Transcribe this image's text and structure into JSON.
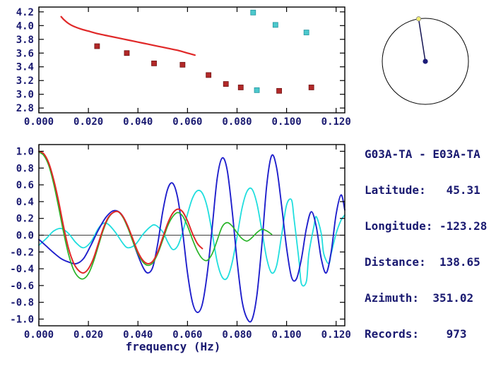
{
  "text_color": "#191970",
  "axis_color": "#000000",
  "info": {
    "title": "G03A-TA - E03A-TA",
    "lines": [
      "Latitude:   45.31",
      "Longitude: -123.28",
      "Distance:  138.65",
      "Azimuth:  351.02",
      "Records:    973"
    ]
  },
  "compass": {
    "azimuth_deg": 351.02,
    "ring_color": "#000000",
    "needle_color": "#141452",
    "end_dot_color": "#f0ec70",
    "center_dot_color": "#1c1c78"
  },
  "chart_data": [
    {
      "type": "scatter",
      "title": "",
      "xlabel": "",
      "ylabel": "",
      "xlim": [
        0,
        0.1235
      ],
      "ylim": [
        2.73,
        4.27
      ],
      "grid": false,
      "xticks": [
        0,
        0.02,
        0.04,
        0.06,
        0.08,
        0.1,
        0.12
      ],
      "xtick_labels": [
        "0.000",
        "0.020",
        "0.040",
        "0.060",
        "0.080",
        "0.100",
        "0.120"
      ],
      "yticks": [
        4.2,
        4.0,
        3.8,
        3.6,
        3.4,
        3.2,
        3.0,
        2.8
      ],
      "ytick_labels": [
        "4.2",
        "4.0",
        "3.8",
        "3.6",
        "3.4",
        "3.2",
        "3.0",
        "2.8"
      ],
      "series": [
        {
          "name": "reference-dispersion-curve",
          "type": "line",
          "color": "#e02828",
          "width": 2.2,
          "points": [
            [
              0.009,
              4.13
            ],
            [
              0.01,
              4.09
            ],
            [
              0.012,
              4.03
            ],
            [
              0.014,
              3.99
            ],
            [
              0.017,
              3.95
            ],
            [
              0.02,
              3.92
            ],
            [
              0.024,
              3.88
            ],
            [
              0.028,
              3.85
            ],
            [
              0.032,
              3.82
            ],
            [
              0.036,
              3.79
            ],
            [
              0.04,
              3.76
            ],
            [
              0.044,
              3.73
            ],
            [
              0.048,
              3.7
            ],
            [
              0.052,
              3.67
            ],
            [
              0.056,
              3.64
            ],
            [
              0.06,
              3.6
            ],
            [
              0.063,
              3.57
            ]
          ]
        },
        {
          "name": "dispersion-picks-red",
          "type": "scatter",
          "marker": "square",
          "color": "#b22828",
          "edge_color": "#701414",
          "points": [
            [
              0.0235,
              3.7
            ],
            [
              0.0355,
              3.6
            ],
            [
              0.0465,
              3.45
            ],
            [
              0.058,
              3.43
            ],
            [
              0.0685,
              3.28
            ],
            [
              0.0755,
              3.15
            ],
            [
              0.0815,
              3.1
            ],
            [
              0.097,
              3.05
            ],
            [
              0.11,
              3.1
            ]
          ]
        },
        {
          "name": "dispersion-picks-cyan",
          "type": "scatter",
          "marker": "square",
          "color": "#4cc8cc",
          "edge_color": "#2496a0",
          "points": [
            [
              0.0865,
              4.19
            ],
            [
              0.0955,
              4.01
            ],
            [
              0.108,
              3.9
            ],
            [
              0.088,
              3.06
            ]
          ]
        }
      ]
    },
    {
      "type": "line",
      "title": "",
      "xlabel": "frequency (Hz)",
      "ylabel": "",
      "xlim": [
        0,
        0.1235
      ],
      "ylim": [
        -1.08,
        1.08
      ],
      "grid": false,
      "zero_line": true,
      "xticks": [
        0,
        0.02,
        0.04,
        0.06,
        0.08,
        0.1,
        0.12
      ],
      "xtick_labels": [
        "0.000",
        "0.020",
        "0.040",
        "0.060",
        "0.080",
        "0.100",
        "0.120"
      ],
      "yticks": [
        1.0,
        0.8,
        0.6,
        0.4,
        0.2,
        0.0,
        -0.2,
        -0.4,
        -0.6,
        -0.8,
        -1.0
      ],
      "ytick_labels": [
        "1.0",
        "0.8",
        "0.6",
        "0.4",
        "0.2",
        "0.0",
        "-0.2",
        "-0.4",
        "-0.6",
        "-0.8",
        "-1.0"
      ],
      "series": [
        {
          "name": "cyan-waveform",
          "type": "line",
          "color": "#20dede",
          "width": 1.8,
          "points": [
            [
              0.0,
              -0.12
            ],
            [
              0.003,
              -0.04
            ],
            [
              0.006,
              0.05
            ],
            [
              0.009,
              0.08
            ],
            [
              0.012,
              0.02
            ],
            [
              0.015,
              -0.09
            ],
            [
              0.018,
              -0.15
            ],
            [
              0.021,
              -0.08
            ],
            [
              0.024,
              0.08
            ],
            [
              0.026,
              0.14
            ],
            [
              0.028,
              0.13
            ],
            [
              0.031,
              0.03
            ],
            [
              0.034,
              -0.1
            ],
            [
              0.036,
              -0.15
            ],
            [
              0.039,
              -0.11
            ],
            [
              0.042,
              0.01
            ],
            [
              0.045,
              0.1
            ],
            [
              0.047,
              0.12
            ],
            [
              0.05,
              0.04
            ],
            [
              0.052,
              -0.08
            ],
            [
              0.054,
              -0.17
            ],
            [
              0.056,
              -0.13
            ],
            [
              0.058,
              0.03
            ],
            [
              0.06,
              0.25
            ],
            [
              0.062,
              0.44
            ],
            [
              0.064,
              0.53
            ],
            [
              0.066,
              0.5
            ],
            [
              0.068,
              0.33
            ],
            [
              0.07,
              0.02
            ],
            [
              0.072,
              -0.32
            ],
            [
              0.074,
              -0.5
            ],
            [
              0.076,
              -0.51
            ],
            [
              0.078,
              -0.33
            ],
            [
              0.08,
              -0.02
            ],
            [
              0.082,
              0.32
            ],
            [
              0.084,
              0.52
            ],
            [
              0.086,
              0.55
            ],
            [
              0.088,
              0.38
            ],
            [
              0.09,
              0.06
            ],
            [
              0.092,
              -0.28
            ],
            [
              0.094,
              -0.45
            ],
            [
              0.096,
              -0.36
            ],
            [
              0.098,
              0.0
            ],
            [
              0.1,
              0.36
            ],
            [
              0.102,
              0.42
            ],
            [
              0.103,
              0.2
            ],
            [
              0.105,
              -0.3
            ],
            [
              0.106,
              -0.58
            ],
            [
              0.108,
              -0.55
            ],
            [
              0.109,
              -0.22
            ],
            [
              0.111,
              0.1
            ],
            [
              0.112,
              0.22
            ],
            [
              0.114,
              0.02
            ],
            [
              0.115,
              -0.22
            ],
            [
              0.117,
              -0.34
            ],
            [
              0.118,
              -0.22
            ],
            [
              0.12,
              0.02
            ],
            [
              0.122,
              0.18
            ],
            [
              0.1235,
              0.24
            ]
          ]
        },
        {
          "name": "blue-waveform",
          "type": "line",
          "color": "#1f1fcc",
          "width": 1.9,
          "points": [
            [
              0.0,
              -0.05
            ],
            [
              0.003,
              -0.13
            ],
            [
              0.006,
              -0.21
            ],
            [
              0.009,
              -0.28
            ],
            [
              0.012,
              -0.32
            ],
            [
              0.015,
              -0.34
            ],
            [
              0.018,
              -0.28
            ],
            [
              0.021,
              -0.12
            ],
            [
              0.024,
              0.06
            ],
            [
              0.027,
              0.21
            ],
            [
              0.03,
              0.29
            ],
            [
              0.033,
              0.26
            ],
            [
              0.036,
              0.1
            ],
            [
              0.039,
              -0.16
            ],
            [
              0.042,
              -0.38
            ],
            [
              0.044,
              -0.45
            ],
            [
              0.046,
              -0.38
            ],
            [
              0.048,
              -0.1
            ],
            [
              0.05,
              0.28
            ],
            [
              0.052,
              0.55
            ],
            [
              0.054,
              0.62
            ],
            [
              0.056,
              0.45
            ],
            [
              0.058,
              0.05
            ],
            [
              0.06,
              -0.45
            ],
            [
              0.062,
              -0.8
            ],
            [
              0.064,
              -0.92
            ],
            [
              0.066,
              -0.82
            ],
            [
              0.068,
              -0.45
            ],
            [
              0.07,
              0.1
            ],
            [
              0.072,
              0.68
            ],
            [
              0.074,
              0.92
            ],
            [
              0.076,
              0.78
            ],
            [
              0.078,
              0.3
            ],
            [
              0.08,
              -0.3
            ],
            [
              0.082,
              -0.78
            ],
            [
              0.084,
              -0.99
            ],
            [
              0.086,
              -1.01
            ],
            [
              0.088,
              -0.72
            ],
            [
              0.09,
              -0.12
            ],
            [
              0.092,
              0.6
            ],
            [
              0.094,
              0.95
            ],
            [
              0.096,
              0.8
            ],
            [
              0.098,
              0.35
            ],
            [
              0.1,
              -0.15
            ],
            [
              0.102,
              -0.5
            ],
            [
              0.104,
              -0.52
            ],
            [
              0.106,
              -0.28
            ],
            [
              0.108,
              0.08
            ],
            [
              0.11,
              0.28
            ],
            [
              0.112,
              0.1
            ],
            [
              0.114,
              -0.28
            ],
            [
              0.116,
              -0.45
            ],
            [
              0.118,
              -0.2
            ],
            [
              0.12,
              0.25
            ],
            [
              0.122,
              0.48
            ],
            [
              0.1235,
              0.3
            ]
          ]
        },
        {
          "name": "green-waveform",
          "type": "line",
          "color": "#28b428",
          "width": 1.7,
          "points": [
            [
              0.0,
              0.99
            ],
            [
              0.002,
              0.95
            ],
            [
              0.004,
              0.83
            ],
            [
              0.006,
              0.61
            ],
            [
              0.008,
              0.33
            ],
            [
              0.01,
              0.03
            ],
            [
              0.012,
              -0.23
            ],
            [
              0.014,
              -0.41
            ],
            [
              0.016,
              -0.5
            ],
            [
              0.018,
              -0.52
            ],
            [
              0.02,
              -0.46
            ],
            [
              0.022,
              -0.32
            ],
            [
              0.024,
              -0.13
            ],
            [
              0.026,
              0.06
            ],
            [
              0.028,
              0.2
            ],
            [
              0.03,
              0.27
            ],
            [
              0.032,
              0.28
            ],
            [
              0.034,
              0.21
            ],
            [
              0.036,
              0.08
            ],
            [
              0.038,
              -0.08
            ],
            [
              0.04,
              -0.22
            ],
            [
              0.042,
              -0.32
            ],
            [
              0.044,
              -0.36
            ],
            [
              0.046,
              -0.33
            ],
            [
              0.048,
              -0.22
            ],
            [
              0.05,
              -0.06
            ],
            [
              0.052,
              0.11
            ],
            [
              0.054,
              0.22
            ],
            [
              0.056,
              0.27
            ],
            [
              0.058,
              0.23
            ],
            [
              0.06,
              0.11
            ],
            [
              0.062,
              -0.05
            ],
            [
              0.064,
              -0.19
            ],
            [
              0.066,
              -0.28
            ],
            [
              0.068,
              -0.3
            ],
            [
              0.07,
              -0.22
            ],
            [
              0.072,
              -0.06
            ],
            [
              0.074,
              0.1
            ],
            [
              0.076,
              0.15
            ],
            [
              0.078,
              0.11
            ],
            [
              0.08,
              0.03
            ],
            [
              0.082,
              -0.04
            ],
            [
              0.084,
              -0.07
            ],
            [
              0.086,
              -0.03
            ],
            [
              0.088,
              0.03
            ],
            [
              0.09,
              0.07
            ],
            [
              0.092,
              0.05
            ],
            [
              0.094,
              0.01
            ]
          ]
        },
        {
          "name": "red-waveform",
          "type": "line",
          "color": "#e02828",
          "width": 2.0,
          "points": [
            [
              0.0,
              1.0
            ],
            [
              0.002,
              0.97
            ],
            [
              0.004,
              0.86
            ],
            [
              0.006,
              0.66
            ],
            [
              0.008,
              0.4
            ],
            [
              0.01,
              0.1
            ],
            [
              0.012,
              -0.16
            ],
            [
              0.014,
              -0.33
            ],
            [
              0.016,
              -0.42
            ],
            [
              0.018,
              -0.45
            ],
            [
              0.02,
              -0.4
            ],
            [
              0.022,
              -0.28
            ],
            [
              0.024,
              -0.1
            ],
            [
              0.026,
              0.08
            ],
            [
              0.028,
              0.21
            ],
            [
              0.03,
              0.27
            ],
            [
              0.032,
              0.28
            ],
            [
              0.034,
              0.22
            ],
            [
              0.036,
              0.1
            ],
            [
              0.038,
              -0.05
            ],
            [
              0.04,
              -0.2
            ],
            [
              0.042,
              -0.3
            ],
            [
              0.044,
              -0.34
            ],
            [
              0.046,
              -0.31
            ],
            [
              0.048,
              -0.2
            ],
            [
              0.05,
              -0.03
            ],
            [
              0.052,
              0.14
            ],
            [
              0.054,
              0.26
            ],
            [
              0.056,
              0.31
            ],
            [
              0.058,
              0.28
            ],
            [
              0.06,
              0.17
            ],
            [
              0.062,
              0.02
            ],
            [
              0.064,
              -0.1
            ],
            [
              0.066,
              -0.16
            ]
          ]
        }
      ]
    }
  ]
}
